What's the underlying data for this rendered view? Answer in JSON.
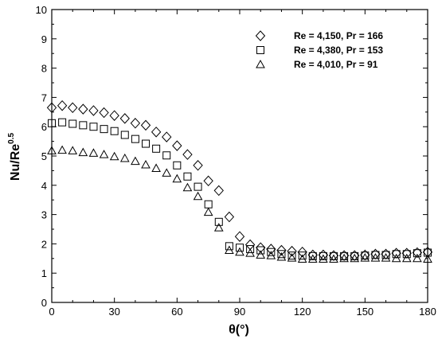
{
  "chart_data": {
    "type": "scatter",
    "xlabel": "θ(°)",
    "ylabel": "Nu/Re",
    "ylabel_superscript": "0.5",
    "xlim": [
      0,
      180
    ],
    "ylim": [
      0,
      10
    ],
    "xticks": [
      0,
      30,
      60,
      90,
      120,
      150,
      180
    ],
    "yticks": [
      0,
      1,
      2,
      3,
      4,
      5,
      6,
      7,
      8,
      9,
      10
    ],
    "grid": false,
    "legend_position": "top-right",
    "series": [
      {
        "name": "Re = 4,150, Pr = 166",
        "marker": "diamond",
        "x": [
          0,
          5,
          10,
          15,
          20,
          25,
          30,
          35,
          40,
          45,
          50,
          55,
          60,
          65,
          70,
          75,
          80,
          85,
          90,
          95,
          100,
          105,
          110,
          115,
          120,
          125,
          130,
          135,
          140,
          145,
          150,
          155,
          160,
          165,
          170,
          175,
          180
        ],
        "y": [
          6.65,
          6.72,
          6.65,
          6.6,
          6.55,
          6.48,
          6.38,
          6.28,
          6.12,
          6.05,
          5.82,
          5.65,
          5.35,
          5.05,
          4.68,
          4.15,
          3.82,
          2.92,
          2.25,
          1.97,
          1.87,
          1.82,
          1.78,
          1.75,
          1.72,
          1.62,
          1.62,
          1.6,
          1.6,
          1.6,
          1.62,
          1.65,
          1.65,
          1.68,
          1.68,
          1.7,
          1.72
        ]
      },
      {
        "name": "Re = 4,380, Pr = 153",
        "marker": "square",
        "x": [
          0,
          5,
          10,
          15,
          20,
          25,
          30,
          35,
          40,
          45,
          50,
          55,
          60,
          65,
          70,
          75,
          80,
          85,
          90,
          95,
          100,
          105,
          110,
          115,
          120,
          125,
          130,
          135,
          140,
          145,
          150,
          155,
          160,
          165,
          170,
          175,
          180
        ],
        "y": [
          6.12,
          6.15,
          6.1,
          6.05,
          6.0,
          5.92,
          5.85,
          5.72,
          5.58,
          5.42,
          5.25,
          5.02,
          4.68,
          4.3,
          3.95,
          3.35,
          2.75,
          1.92,
          1.87,
          1.82,
          1.78,
          1.72,
          1.65,
          1.6,
          1.6,
          1.58,
          1.58,
          1.58,
          1.58,
          1.58,
          1.6,
          1.62,
          1.62,
          1.65,
          1.65,
          1.68,
          1.7
        ]
      },
      {
        "name": "Re = 4,010, Pr = 91",
        "marker": "triangle",
        "x": [
          0,
          5,
          10,
          15,
          20,
          25,
          30,
          35,
          40,
          45,
          50,
          55,
          60,
          65,
          70,
          75,
          80,
          85,
          90,
          95,
          100,
          105,
          110,
          115,
          120,
          125,
          130,
          135,
          140,
          145,
          150,
          155,
          160,
          165,
          170,
          175,
          180
        ],
        "y": [
          5.18,
          5.2,
          5.18,
          5.12,
          5.1,
          5.05,
          4.98,
          4.92,
          4.82,
          4.7,
          4.58,
          4.42,
          4.22,
          3.92,
          3.62,
          3.08,
          2.55,
          1.78,
          1.72,
          1.68,
          1.62,
          1.6,
          1.55,
          1.52,
          1.48,
          1.48,
          1.48,
          1.48,
          1.5,
          1.5,
          1.52,
          1.52,
          1.52,
          1.5,
          1.5,
          1.5,
          1.48
        ]
      }
    ]
  }
}
